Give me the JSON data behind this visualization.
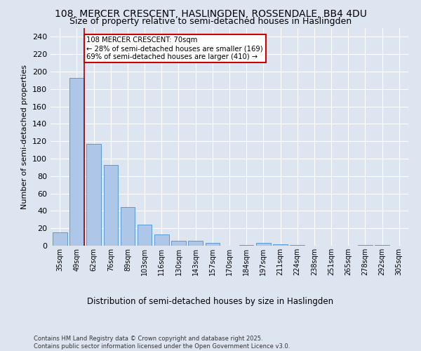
{
  "title1": "108, MERCER CRESCENT, HASLINGDEN, ROSSENDALE, BB4 4DU",
  "title2": "Size of property relative to semi-detached houses in Haslingden",
  "xlabel": "Distribution of semi-detached houses by size in Haslingden",
  "ylabel": "Number of semi-detached properties",
  "categories": [
    "35sqm",
    "49sqm",
    "62sqm",
    "76sqm",
    "89sqm",
    "103sqm",
    "116sqm",
    "130sqm",
    "143sqm",
    "157sqm",
    "170sqm",
    "184sqm",
    "197sqm",
    "211sqm",
    "224sqm",
    "238sqm",
    "251sqm",
    "265sqm",
    "278sqm",
    "292sqm",
    "305sqm"
  ],
  "values": [
    15,
    193,
    117,
    93,
    44,
    24,
    13,
    6,
    6,
    3,
    0,
    1,
    3,
    2,
    1,
    0,
    0,
    0,
    1,
    1,
    0
  ],
  "bar_color": "#aec6e8",
  "bar_edge_color": "#5a9ad4",
  "vline_x_idx": 1,
  "vline_color": "#a00000",
  "annotation_text": "108 MERCER CRESCENT: 70sqm\n← 28% of semi-detached houses are smaller (169)\n69% of semi-detached houses are larger (410) →",
  "annotation_box_color": "#ffffff",
  "annotation_box_edge": "#cc0000",
  "footer": "Contains HM Land Registry data © Crown copyright and database right 2025.\nContains public sector information licensed under the Open Government Licence v3.0.",
  "ylim": [
    0,
    250
  ],
  "yticks": [
    0,
    20,
    40,
    60,
    80,
    100,
    120,
    140,
    160,
    180,
    200,
    220,
    240
  ],
  "bg_color": "#dde5f0",
  "plot_bg_color": "#dde5f0",
  "title_fontsize": 10,
  "subtitle_fontsize": 9
}
